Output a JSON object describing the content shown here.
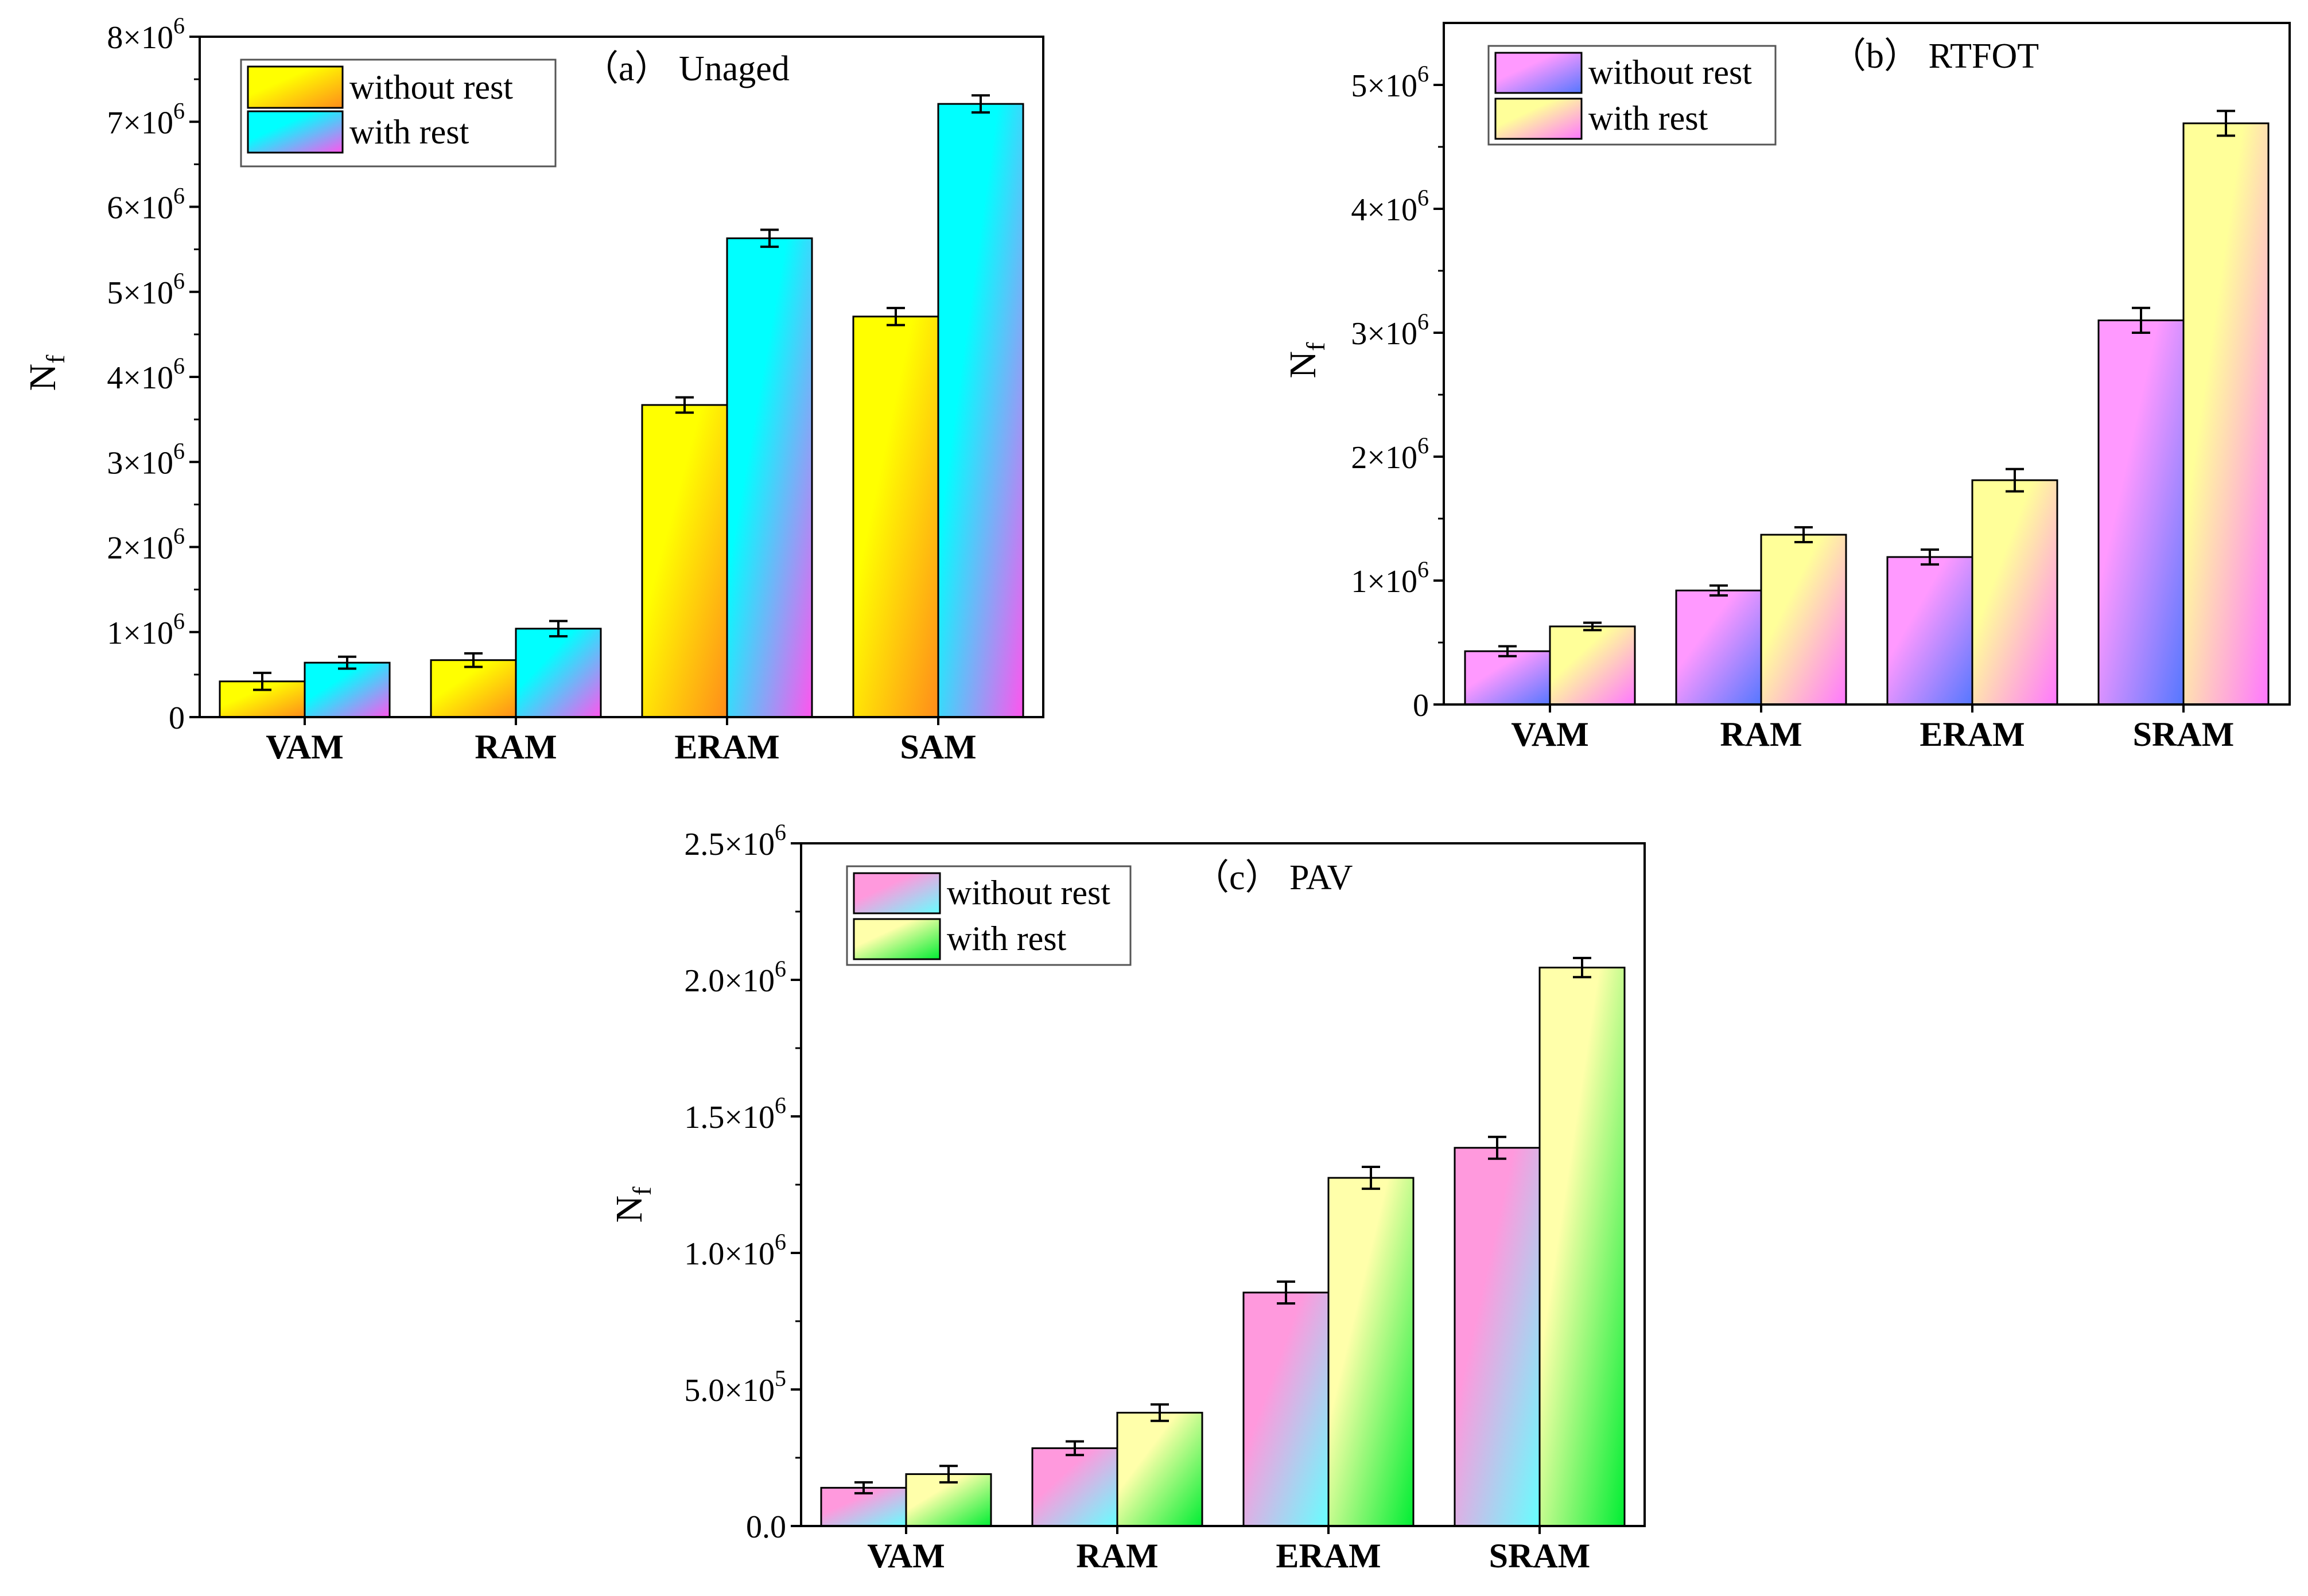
{
  "chart_data": [
    {
      "id": "a",
      "type": "bar",
      "title": "（a） Unaged",
      "xlabel": "",
      "ylabel": "N",
      "ylabel_sub": "f",
      "categories": [
        "VAM",
        "RAM",
        "ERAM",
        "SAM"
      ],
      "ylim": [
        0,
        8000000
      ],
      "yticks": [
        {
          "value": 0,
          "mant": "0",
          "exp": ""
        },
        {
          "value": 1000000,
          "mant": "1×10",
          "exp": "6"
        },
        {
          "value": 2000000,
          "mant": "2×10",
          "exp": "6"
        },
        {
          "value": 3000000,
          "mant": "3×10",
          "exp": "6"
        },
        {
          "value": 4000000,
          "mant": "4×10",
          "exp": "6"
        },
        {
          "value": 5000000,
          "mant": "5×10",
          "exp": "6"
        },
        {
          "value": 6000000,
          "mant": "6×10",
          "exp": "6"
        },
        {
          "value": 7000000,
          "mant": "7×10",
          "exp": "6"
        },
        {
          "value": 8000000,
          "mant": "8×10",
          "exp": "6"
        }
      ],
      "series": [
        {
          "name": "without rest",
          "values": [
            420000,
            670000,
            3670000,
            4710000
          ],
          "errors": [
            100000,
            80000,
            90000,
            100000
          ],
          "colors": [
            "#ffff00",
            "#ff8c1a"
          ]
        },
        {
          "name": "with rest",
          "values": [
            640000,
            1040000,
            5630000,
            7210000
          ],
          "errors": [
            70000,
            90000,
            100000,
            100000
          ],
          "colors": [
            "#00ffff",
            "#ff55ee"
          ]
        }
      ],
      "legend_position": "top-left"
    },
    {
      "id": "b",
      "type": "bar",
      "title": "（b） RTFOT",
      "xlabel": "",
      "ylabel": "N",
      "ylabel_sub": "f",
      "categories": [
        "VAM",
        "RAM",
        "ERAM",
        "SRAM"
      ],
      "ylim": [
        0,
        5500000
      ],
      "yticks": [
        {
          "value": 0,
          "mant": "0",
          "exp": ""
        },
        {
          "value": 1000000,
          "mant": "1×10",
          "exp": "6"
        },
        {
          "value": 2000000,
          "mant": "2×10",
          "exp": "6"
        },
        {
          "value": 3000000,
          "mant": "3×10",
          "exp": "6"
        },
        {
          "value": 4000000,
          "mant": "4×10",
          "exp": "6"
        },
        {
          "value": 5000000,
          "mant": "5×10",
          "exp": "6"
        }
      ],
      "series": [
        {
          "name": "without rest",
          "values": [
            430000,
            920000,
            1190000,
            3100000
          ],
          "errors": [
            40000,
            40000,
            60000,
            100000
          ],
          "colors": [
            "#ff99ff",
            "#5577ff"
          ]
        },
        {
          "name": "with rest",
          "values": [
            630000,
            1370000,
            1810000,
            4690000
          ],
          "errors": [
            30000,
            60000,
            90000,
            100000
          ],
          "colors": [
            "#ffff99",
            "#ff77ff"
          ]
        }
      ],
      "legend_position": "top-left"
    },
    {
      "id": "c",
      "type": "bar",
      "title": "（c） PAV",
      "xlabel": "",
      "ylabel": "N",
      "ylabel_sub": "f",
      "categories": [
        "VAM",
        "RAM",
        "ERAM",
        "SRAM"
      ],
      "ylim": [
        0,
        2500000
      ],
      "yticks": [
        {
          "value": 0,
          "mant": "0.0",
          "exp": ""
        },
        {
          "value": 500000,
          "mant": "5.0×10",
          "exp": "5"
        },
        {
          "value": 1000000,
          "mant": "1.0×10",
          "exp": "6"
        },
        {
          "value": 1500000,
          "mant": "1.5×10",
          "exp": "6"
        },
        {
          "value": 2000000,
          "mant": "2.0×10",
          "exp": "6"
        },
        {
          "value": 2500000,
          "mant": "2.5×10",
          "exp": "6"
        }
      ],
      "series": [
        {
          "name": "without rest",
          "values": [
            140000,
            285000,
            855000,
            1385000
          ],
          "errors": [
            20000,
            25000,
            40000,
            40000
          ],
          "colors": [
            "#ff99dd",
            "#66ffff"
          ]
        },
        {
          "name": "with rest",
          "values": [
            190000,
            415000,
            1275000,
            2045000
          ],
          "errors": [
            30000,
            30000,
            40000,
            35000
          ],
          "colors": [
            "#ffffaa",
            "#00ee33"
          ]
        }
      ],
      "legend_position": "top-left"
    }
  ]
}
